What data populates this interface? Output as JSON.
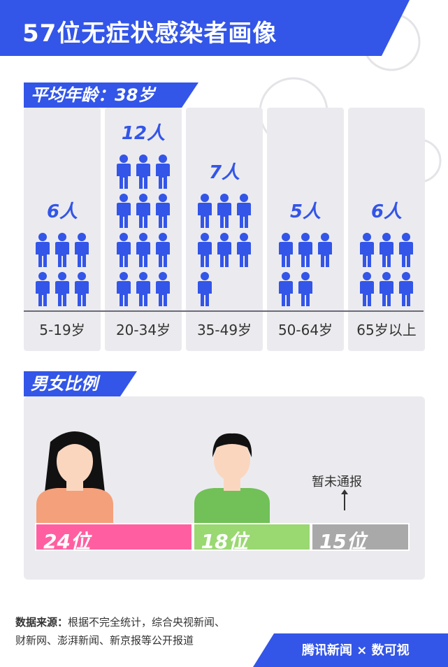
{
  "title": "57位无症状感染者画像",
  "average_age_label": "平均年龄：38岁",
  "gender_section_label": "男女比例",
  "chart_data": [
    {
      "type": "bar",
      "categories": [
        "5-19岁",
        "20-34岁",
        "35-49岁",
        "50-64岁",
        "65岁以上"
      ],
      "values": [
        6,
        12,
        7,
        5,
        6
      ],
      "value_labels": [
        "6人",
        "12人",
        "7人",
        "5人",
        "6人"
      ],
      "unit": "人"
    },
    {
      "type": "bar",
      "categories": [
        "female",
        "male",
        "unreported"
      ],
      "values": [
        24,
        18,
        15
      ],
      "value_labels": [
        "24位",
        "18位",
        "15位"
      ],
      "colors": [
        "#ff5fa0",
        "#9ad872",
        "#a9a9a9"
      ],
      "annotation": "暂未通报"
    }
  ],
  "source": {
    "label": "数据来源：",
    "line1": "根据不完全统计，综合央视新闻、",
    "line2": "财新网、澎湃新闻、新京报等公开报道"
  },
  "footer": "腾讯新闻 × 数可视",
  "colors": {
    "accent": "#3355e8",
    "panel": "#ebebef",
    "female": "#ff5fa0",
    "male": "#9ad872",
    "unknown": "#a9a9a9"
  }
}
